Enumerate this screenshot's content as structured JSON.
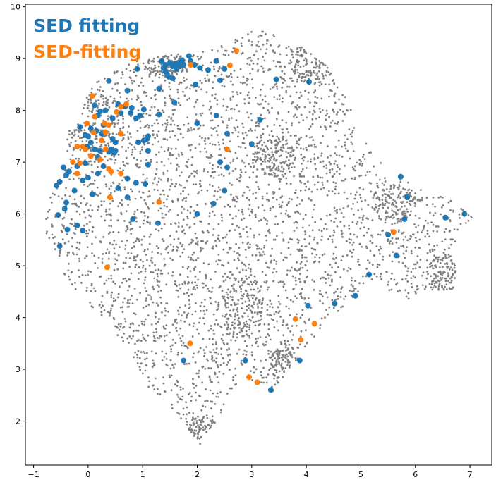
{
  "chart_data": {
    "type": "scatter",
    "title": "",
    "xlabel": "",
    "ylabel": "",
    "xlim": [
      -1.15,
      7.4
    ],
    "ylim": [
      1.15,
      10.05
    ],
    "xticks": [
      -1,
      0,
      1,
      2,
      3,
      4,
      5,
      6,
      7
    ],
    "yticks": [
      2,
      3,
      4,
      5,
      6,
      7,
      8,
      9,
      10
    ],
    "grid": false,
    "legend_placement": "top-left",
    "background_cloud": {
      "color": "#808080",
      "approx_points": 3500,
      "outline": [
        [
          -0.85,
          5.8
        ],
        [
          -0.7,
          6.3
        ],
        [
          -0.55,
          6.7
        ],
        [
          -0.45,
          7.0
        ],
        [
          -0.4,
          7.5
        ],
        [
          -0.25,
          7.8
        ],
        [
          -0.05,
          8.2
        ],
        [
          0.1,
          8.5
        ],
        [
          0.4,
          8.8
        ],
        [
          0.8,
          8.95
        ],
        [
          1.3,
          9.05
        ],
        [
          1.8,
          9.1
        ],
        [
          2.2,
          9.15
        ],
        [
          2.6,
          9.3
        ],
        [
          3.0,
          9.55
        ],
        [
          3.2,
          9.65
        ],
        [
          3.6,
          9.35
        ],
        [
          4.0,
          9.2
        ],
        [
          4.4,
          8.85
        ],
        [
          4.7,
          8.3
        ],
        [
          5.0,
          7.6
        ],
        [
          5.3,
          7.05
        ],
        [
          5.6,
          6.75
        ],
        [
          6.0,
          6.55
        ],
        [
          6.5,
          6.35
        ],
        [
          6.8,
          6.15
        ],
        [
          7.05,
          5.95
        ],
        [
          6.85,
          5.7
        ],
        [
          6.65,
          5.3
        ],
        [
          6.75,
          4.9
        ],
        [
          6.7,
          4.55
        ],
        [
          6.3,
          4.45
        ],
        [
          5.9,
          4.3
        ],
        [
          5.5,
          4.5
        ],
        [
          5.2,
          4.7
        ],
        [
          4.9,
          4.4
        ],
        [
          4.6,
          4.1
        ],
        [
          4.2,
          3.7
        ],
        [
          3.95,
          3.3
        ],
        [
          3.7,
          3.0
        ],
        [
          3.4,
          2.55
        ],
        [
          3.1,
          2.7
        ],
        [
          2.9,
          2.9
        ],
        [
          2.6,
          2.5
        ],
        [
          2.35,
          2.0
        ],
        [
          2.05,
          1.55
        ],
        [
          1.8,
          1.9
        ],
        [
          1.6,
          2.2
        ],
        [
          1.3,
          2.4
        ],
        [
          1.0,
          2.8
        ],
        [
          0.8,
          3.3
        ],
        [
          0.6,
          3.6
        ],
        [
          0.3,
          3.9
        ],
        [
          0.0,
          4.3
        ],
        [
          -0.3,
          4.6
        ],
        [
          -0.55,
          5.0
        ],
        [
          -0.7,
          5.4
        ]
      ],
      "dense_regions": [
        [
          1.4,
          8.9,
          0.4,
          0.25
        ],
        [
          0.2,
          7.7,
          0.5,
          0.6
        ],
        [
          2.8,
          4.2,
          0.4,
          0.6
        ],
        [
          6.5,
          4.8,
          0.3,
          0.4
        ],
        [
          5.6,
          6.2,
          0.4,
          0.4
        ],
        [
          2.0,
          1.8,
          0.4,
          0.3
        ],
        [
          3.6,
          3.1,
          0.3,
          0.4
        ],
        [
          4.1,
          8.9,
          0.4,
          0.4
        ],
        [
          3.4,
          7.1,
          0.4,
          0.4
        ]
      ]
    },
    "series": [
      {
        "name": "SED fitting",
        "color": "#1f77b4",
        "points": [
          [
            1.35,
            8.95
          ],
          [
            1.38,
            8.82
          ],
          [
            1.42,
            8.88
          ],
          [
            1.45,
            8.7
          ],
          [
            1.5,
            8.92
          ],
          [
            1.48,
            8.65
          ],
          [
            1.55,
            8.85
          ],
          [
            1.42,
            8.75
          ],
          [
            1.6,
            8.9
          ],
          [
            1.65,
            8.92
          ],
          [
            1.68,
            8.85
          ],
          [
            1.72,
            8.97
          ],
          [
            1.75,
            8.88
          ],
          [
            1.62,
            8.8
          ],
          [
            1.85,
            9.05
          ],
          [
            1.88,
            8.95
          ],
          [
            1.95,
            8.88
          ],
          [
            2.05,
            8.82
          ],
          [
            2.35,
            8.95
          ],
          [
            2.2,
            8.78
          ],
          [
            2.5,
            8.8
          ],
          [
            2.42,
            8.58
          ],
          [
            1.55,
            8.62
          ],
          [
            1.3,
            8.42
          ],
          [
            1.58,
            8.15
          ],
          [
            1.97,
            8.5
          ],
          [
            0.9,
            8.8
          ],
          [
            0.38,
            8.57
          ],
          [
            0.72,
            8.38
          ],
          [
            0.55,
            8.12
          ],
          [
            0.12,
            8.1
          ],
          [
            0.22,
            7.98
          ],
          [
            0.18,
            7.9
          ],
          [
            0.32,
            8.0
          ],
          [
            0.45,
            7.85
          ],
          [
            0.6,
            7.95
          ],
          [
            0.68,
            8.08
          ],
          [
            0.8,
            8.05
          ],
          [
            0.95,
            7.9
          ],
          [
            1.02,
            8.02
          ],
          [
            0.78,
            7.95
          ],
          [
            0.88,
            7.85
          ],
          [
            1.3,
            7.92
          ],
          [
            0.28,
            7.72
          ],
          [
            0.25,
            7.55
          ],
          [
            0.15,
            7.6
          ],
          [
            0.05,
            7.65
          ],
          [
            -0.15,
            7.68
          ],
          [
            -0.05,
            7.52
          ],
          [
            0.45,
            7.45
          ],
          [
            0.5,
            7.38
          ],
          [
            0.42,
            7.25
          ],
          [
            0.38,
            7.2
          ],
          [
            0.48,
            7.18
          ],
          [
            0.5,
            7.22
          ],
          [
            0.22,
            7.22
          ],
          [
            0.18,
            7.1
          ],
          [
            0.12,
            7.25
          ],
          [
            0.05,
            7.38
          ],
          [
            -0.02,
            7.3
          ],
          [
            0.0,
            7.5
          ],
          [
            0.92,
            7.38
          ],
          [
            1.08,
            7.45
          ],
          [
            1.1,
            7.5
          ],
          [
            1.02,
            7.42
          ],
          [
            1.1,
            7.22
          ],
          [
            1.1,
            6.95
          ],
          [
            -0.05,
            6.98
          ],
          [
            -0.2,
            6.92
          ],
          [
            -0.35,
            6.82
          ],
          [
            -0.4,
            6.75
          ],
          [
            -0.45,
            6.9
          ],
          [
            -0.52,
            6.62
          ],
          [
            -0.58,
            6.55
          ],
          [
            -0.25,
            6.45
          ],
          [
            -0.1,
            6.65
          ],
          [
            0.0,
            6.7
          ],
          [
            0.28,
            6.92
          ],
          [
            0.18,
            6.78
          ],
          [
            0.72,
            6.68
          ],
          [
            0.55,
            6.5
          ],
          [
            0.72,
            6.32
          ],
          [
            0.08,
            6.38
          ],
          [
            0.88,
            6.6
          ],
          [
            1.05,
            6.58
          ],
          [
            0.82,
            5.9
          ],
          [
            1.28,
            5.82
          ],
          [
            -0.4,
            6.22
          ],
          [
            -0.43,
            6.1
          ],
          [
            -0.55,
            5.98
          ],
          [
            -0.2,
            5.78
          ],
          [
            -0.38,
            5.7
          ],
          [
            -0.1,
            5.68
          ],
          [
            -0.52,
            5.38
          ],
          [
            2.0,
            7.75
          ],
          [
            2.35,
            7.9
          ],
          [
            2.55,
            7.55
          ],
          [
            2.42,
            7.0
          ],
          [
            2.55,
            6.9
          ],
          [
            2.5,
            6.45
          ],
          [
            2.3,
            6.2
          ],
          [
            2.0,
            6.0
          ],
          [
            3.0,
            7.35
          ],
          [
            3.15,
            7.82
          ],
          [
            3.45,
            8.6
          ],
          [
            4.05,
            8.55
          ],
          [
            5.73,
            6.72
          ],
          [
            5.85,
            6.32
          ],
          [
            5.8,
            5.9
          ],
          [
            5.5,
            5.6
          ],
          [
            5.65,
            5.2
          ],
          [
            5.15,
            4.83
          ],
          [
            4.9,
            4.42
          ],
          [
            4.52,
            4.27
          ],
          [
            4.03,
            4.23
          ],
          [
            3.88,
            3.17
          ],
          [
            3.35,
            2.6
          ],
          [
            2.88,
            3.17
          ],
          [
            1.75,
            3.17
          ],
          [
            6.9,
            6.0
          ],
          [
            6.55,
            5.93
          ]
        ]
      },
      {
        "name": "SED-fitting",
        "color": "#ff7f0e",
        "points": [
          [
            2.72,
            9.15
          ],
          [
            2.6,
            8.87
          ],
          [
            1.88,
            8.88
          ],
          [
            0.08,
            8.28
          ],
          [
            0.6,
            8.07
          ],
          [
            0.7,
            8.12
          ],
          [
            0.52,
            7.97
          ],
          [
            0.12,
            7.88
          ],
          [
            0.1,
            7.57
          ],
          [
            0.3,
            7.75
          ],
          [
            0.38,
            7.72
          ],
          [
            0.25,
            7.42
          ],
          [
            0.32,
            7.58
          ],
          [
            0.6,
            7.55
          ],
          [
            -0.02,
            7.75
          ],
          [
            -0.1,
            7.3
          ],
          [
            -0.05,
            7.25
          ],
          [
            -0.2,
            7.3
          ],
          [
            0.32,
            7.25
          ],
          [
            -0.28,
            7.0
          ],
          [
            -0.15,
            6.98
          ],
          [
            0.05,
            7.12
          ],
          [
            0.22,
            7.05
          ],
          [
            0.38,
            6.87
          ],
          [
            0.42,
            6.82
          ],
          [
            0.6,
            6.78
          ],
          [
            -0.2,
            6.78
          ],
          [
            0.4,
            6.32
          ],
          [
            1.3,
            6.23
          ],
          [
            2.55,
            7.25
          ],
          [
            0.35,
            4.97
          ],
          [
            3.8,
            3.97
          ],
          [
            4.15,
            3.88
          ],
          [
            3.9,
            3.57
          ],
          [
            1.87,
            3.5
          ],
          [
            2.95,
            2.85
          ],
          [
            3.1,
            2.75
          ],
          [
            5.6,
            5.65
          ]
        ]
      }
    ]
  }
}
